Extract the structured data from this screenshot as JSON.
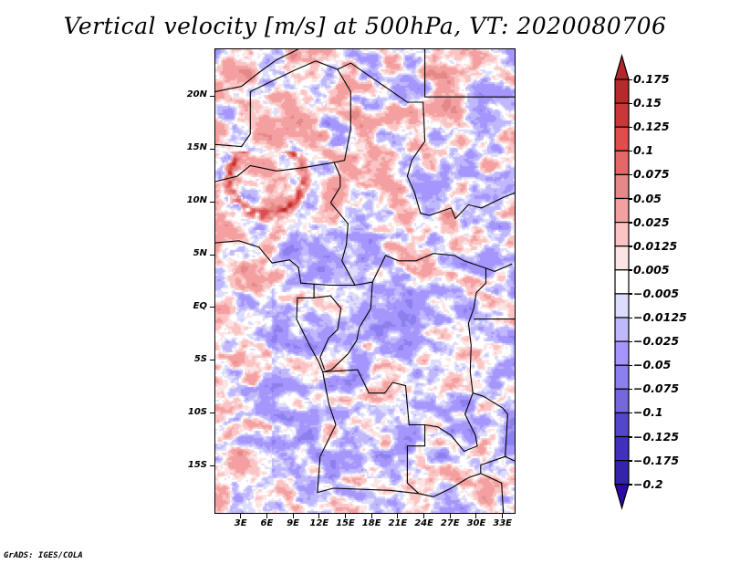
{
  "title": "Vertical velocity [m/s] at 500hPa, VT: 2020080706",
  "footer": "GrADS: IGES/COLA",
  "map": {
    "variable": "Vertical velocity",
    "units": "m/s",
    "level": "500hPa",
    "valid_time": "2020080706",
    "lon_range": [
      0,
      34.5
    ],
    "lat_range": [
      -19.5,
      24.5
    ],
    "y_ticks": [
      {
        "value": 20,
        "label": "20N"
      },
      {
        "value": 15,
        "label": "15N"
      },
      {
        "value": 10,
        "label": "10N"
      },
      {
        "value": 5,
        "label": "5N"
      },
      {
        "value": 0,
        "label": "EQ"
      },
      {
        "value": -5,
        "label": "5S"
      },
      {
        "value": -10,
        "label": "10S"
      },
      {
        "value": -15,
        "label": "15S"
      }
    ],
    "x_ticks": [
      {
        "value": 3,
        "label": "3E"
      },
      {
        "value": 6,
        "label": "6E"
      },
      {
        "value": 9,
        "label": "9E"
      },
      {
        "value": 12,
        "label": "12E"
      },
      {
        "value": 15,
        "label": "15E"
      },
      {
        "value": 18,
        "label": "18E"
      },
      {
        "value": 21,
        "label": "21E"
      },
      {
        "value": 24,
        "label": "24E"
      },
      {
        "value": 27,
        "label": "27E"
      },
      {
        "value": 30,
        "label": "30E"
      },
      {
        "value": 33,
        "label": "33E"
      }
    ]
  },
  "colorbar": {
    "levels": [
      {
        "label": "0.175",
        "color": "#b52a2a"
      },
      {
        "label": "0.15",
        "color": "#c83838"
      },
      {
        "label": "0.125",
        "color": "#e04d4d"
      },
      {
        "label": "0.1",
        "color": "#e46868"
      },
      {
        "label": "0.075",
        "color": "#e48888"
      },
      {
        "label": "0.05",
        "color": "#f4a0a0"
      },
      {
        "label": "0.025",
        "color": "#fac4c4"
      },
      {
        "label": "0.0125",
        "color": "#fde4e4"
      },
      {
        "label": "0.005",
        "color": "#ffffff"
      },
      {
        "label": "-0.005",
        "color": "#dcdcfc"
      },
      {
        "label": "-0.0125",
        "color": "#c0b8fc"
      },
      {
        "label": "-0.025",
        "color": "#a496fc"
      },
      {
        "label": "-0.05",
        "color": "#8c80ee"
      },
      {
        "label": "-0.075",
        "color": "#7468dc"
      },
      {
        "label": "-0.1",
        "color": "#5446cc"
      },
      {
        "label": "-0.125",
        "color": "#4030bc"
      },
      {
        "label": "-0.175",
        "color": "#3424aa"
      },
      {
        "label": "-0.2",
        "color": "#2a1c9c"
      }
    ],
    "top_arrow_color": "#b0282c",
    "bottom_arrow_color": "#2c0aa8"
  }
}
